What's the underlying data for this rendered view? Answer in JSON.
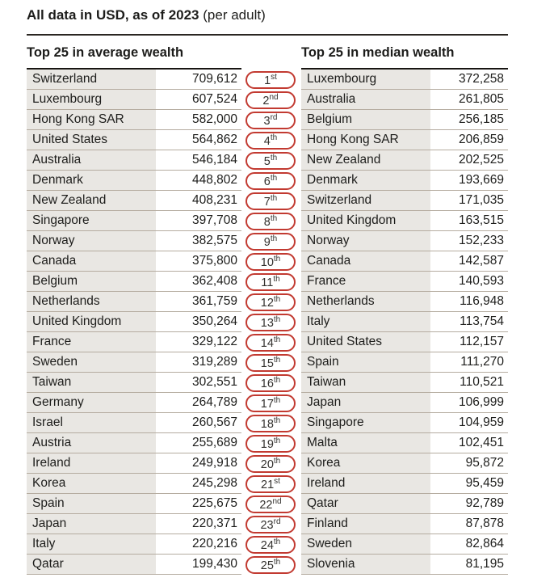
{
  "header": {
    "title_bold": "All data in USD, as of 2023",
    "title_note": "(per adult)"
  },
  "colors": {
    "accent_red": "#c23a31",
    "row_gray": "#e9e7e3",
    "separator_tan": "#b5aca0",
    "rule_dark": "#2a2622"
  },
  "tables": [
    {
      "header": "Top 25 in average wealth",
      "rows": [
        {
          "market": "Switzerland",
          "value": "709,612"
        },
        {
          "market": "Luxembourg",
          "value": "607,524"
        },
        {
          "market": "Hong Kong SAR",
          "value": "582,000"
        },
        {
          "market": "United States",
          "value": "564,862"
        },
        {
          "market": "Australia",
          "value": "546,184"
        },
        {
          "market": "Denmark",
          "value": "448,802"
        },
        {
          "market": "New Zealand",
          "value": "408,231"
        },
        {
          "market": "Singapore",
          "value": "397,708"
        },
        {
          "market": "Norway",
          "value": "382,575"
        },
        {
          "market": "Canada",
          "value": "375,800"
        },
        {
          "market": "Belgium",
          "value": "362,408"
        },
        {
          "market": "Netherlands",
          "value": "361,759"
        },
        {
          "market": "United Kingdom",
          "value": "350,264"
        },
        {
          "market": "France",
          "value": "329,122"
        },
        {
          "market": "Sweden",
          "value": "319,289"
        },
        {
          "market": "Taiwan",
          "value": "302,551"
        },
        {
          "market": "Germany",
          "value": "264,789"
        },
        {
          "market": "Israel",
          "value": "260,567"
        },
        {
          "market": "Austria",
          "value": "255,689"
        },
        {
          "market": "Ireland",
          "value": "249,918"
        },
        {
          "market": "Korea",
          "value": "245,298"
        },
        {
          "market": "Spain",
          "value": "225,675"
        },
        {
          "market": "Japan",
          "value": "220,371"
        },
        {
          "market": "Italy",
          "value": "220,216"
        },
        {
          "market": "Qatar",
          "value": "199,430"
        }
      ]
    },
    {
      "header": "Top 25 in median wealth",
      "rows": [
        {
          "market": "Luxembourg",
          "value": "372,258"
        },
        {
          "market": "Australia",
          "value": "261,805"
        },
        {
          "market": "Belgium",
          "value": "256,185"
        },
        {
          "market": "Hong Kong SAR",
          "value": "206,859"
        },
        {
          "market": "New Zealand",
          "value": "202,525"
        },
        {
          "market": "Denmark",
          "value": "193,669"
        },
        {
          "market": "Switzerland",
          "value": "171,035"
        },
        {
          "market": "United Kingdom",
          "value": "163,515"
        },
        {
          "market": "Norway",
          "value": "152,233"
        },
        {
          "market": "Canada",
          "value": "142,587"
        },
        {
          "market": "France",
          "value": "140,593"
        },
        {
          "market": "Netherlands",
          "value": "116,948"
        },
        {
          "market": "Italy",
          "value": "113,754"
        },
        {
          "market": "United States",
          "value": "112,157"
        },
        {
          "market": "Spain",
          "value": "111,270"
        },
        {
          "market": "Taiwan",
          "value": "110,521"
        },
        {
          "market": "Japan",
          "value": "106,999"
        },
        {
          "market": "Singapore",
          "value": "104,959"
        },
        {
          "market": "Malta",
          "value": "102,451"
        },
        {
          "market": "Korea",
          "value": "95,872"
        },
        {
          "market": "Ireland",
          "value": "95,459"
        },
        {
          "market": "Qatar",
          "value": "92,789"
        },
        {
          "market": "Finland",
          "value": "87,878"
        },
        {
          "market": "Sweden",
          "value": "82,864"
        },
        {
          "market": "Slovenia",
          "value": "81,195"
        }
      ]
    }
  ],
  "ranks": [
    {
      "number": "1",
      "suffix": "st"
    },
    {
      "number": "2",
      "suffix": "nd"
    },
    {
      "number": "3",
      "suffix": "rd"
    },
    {
      "number": "4",
      "suffix": "th"
    },
    {
      "number": "5",
      "suffix": "th"
    },
    {
      "number": "6",
      "suffix": "th"
    },
    {
      "number": "7",
      "suffix": "th"
    },
    {
      "number": "8",
      "suffix": "th"
    },
    {
      "number": "9",
      "suffix": "th"
    },
    {
      "number": "10",
      "suffix": "th"
    },
    {
      "number": "11",
      "suffix": "th"
    },
    {
      "number": "12",
      "suffix": "th"
    },
    {
      "number": "13",
      "suffix": "th"
    },
    {
      "number": "14",
      "suffix": "th"
    },
    {
      "number": "15",
      "suffix": "th"
    },
    {
      "number": "16",
      "suffix": "th"
    },
    {
      "number": "17",
      "suffix": "th"
    },
    {
      "number": "18",
      "suffix": "th"
    },
    {
      "number": "19",
      "suffix": "th"
    },
    {
      "number": "20",
      "suffix": "th"
    },
    {
      "number": "21",
      "suffix": "st"
    },
    {
      "number": "22",
      "suffix": "nd"
    },
    {
      "number": "23",
      "suffix": "rd"
    },
    {
      "number": "24",
      "suffix": "th"
    },
    {
      "number": "25",
      "suffix": "th"
    }
  ]
}
